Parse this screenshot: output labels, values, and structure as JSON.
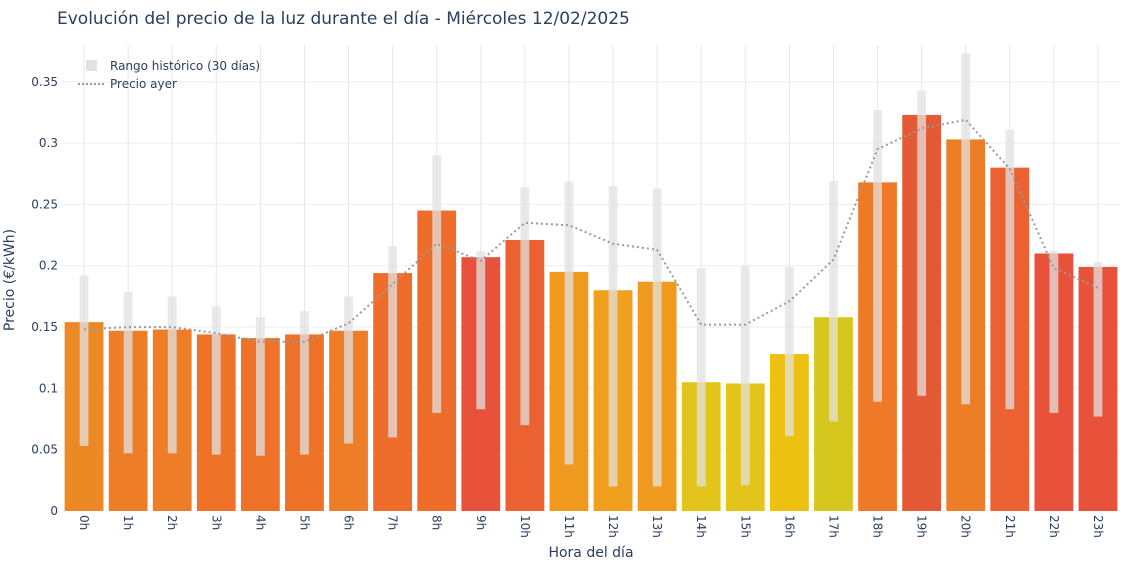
{
  "chart_data": {
    "type": "bar",
    "title": "Evolución del precio de la luz durante el día - Miércoles 12/02/2025",
    "xlabel": "Hora del día",
    "ylabel": "Precio (€/kWh)",
    "ylim": [
      0,
      0.38
    ],
    "yticks": [
      0,
      0.05,
      0.1,
      0.15,
      0.2,
      0.25,
      0.3,
      0.35
    ],
    "ytick_labels": [
      "0",
      "0.05",
      "0.1",
      "0.15",
      "0.2",
      "0.25",
      "0.3",
      "0.35"
    ],
    "categories": [
      "0h",
      "1h",
      "2h",
      "3h",
      "4h",
      "5h",
      "6h",
      "7h",
      "8h",
      "9h",
      "10h",
      "11h",
      "12h",
      "13h",
      "14h",
      "15h",
      "16h",
      "17h",
      "18h",
      "19h",
      "20h",
      "21h",
      "22h",
      "23h"
    ],
    "values": [
      0.154,
      0.147,
      0.148,
      0.144,
      0.141,
      0.144,
      0.147,
      0.194,
      0.245,
      0.207,
      0.221,
      0.195,
      0.18,
      0.187,
      0.105,
      0.104,
      0.128,
      0.158,
      0.268,
      0.323,
      0.303,
      0.28,
      0.21,
      0.199
    ],
    "bar_colors": [
      "#ec8924",
      "#ee7d27",
      "#ee7d27",
      "#ef7229",
      "#ef7229",
      "#ef7229",
      "#ee7d27",
      "#ee6d2a",
      "#ee6d2a",
      "#e8513a",
      "#ec6131",
      "#ef9a1f",
      "#f0a01c",
      "#ef9a1f",
      "#e3c41a",
      "#e3c41a",
      "#ecc112",
      "#d6c71e",
      "#ee7a28",
      "#e55a36",
      "#ec7e27",
      "#ec6131",
      "#e8513a",
      "#e8513a"
    ],
    "historical_range": {
      "name": "Rango histórico (30 días)",
      "low": [
        0.053,
        0.047,
        0.047,
        0.046,
        0.045,
        0.046,
        0.055,
        0.06,
        0.08,
        0.083,
        0.07,
        0.038,
        0.02,
        0.02,
        0.02,
        0.021,
        0.061,
        0.073,
        0.089,
        0.094,
        0.087,
        0.083,
        0.08,
        0.077
      ],
      "high": [
        0.192,
        0.179,
        0.175,
        0.167,
        0.158,
        0.163,
        0.175,
        0.216,
        0.29,
        0.212,
        0.264,
        0.269,
        0.265,
        0.263,
        0.198,
        0.2,
        0.199,
        0.269,
        0.327,
        0.343,
        0.373,
        0.311,
        0.212,
        0.203
      ],
      "color": "#e2e2e2"
    },
    "previous_day": {
      "name": "Precio ayer",
      "values": [
        0.148,
        0.15,
        0.15,
        0.145,
        0.138,
        0.138,
        0.153,
        0.185,
        0.218,
        0.204,
        0.235,
        0.233,
        0.218,
        0.213,
        0.152,
        0.152,
        0.171,
        0.205,
        0.295,
        0.312,
        0.319,
        0.279,
        0.198,
        0.182
      ],
      "color": "#999999",
      "style": "dotted"
    },
    "legend_position": "top-left",
    "grid": true
  }
}
